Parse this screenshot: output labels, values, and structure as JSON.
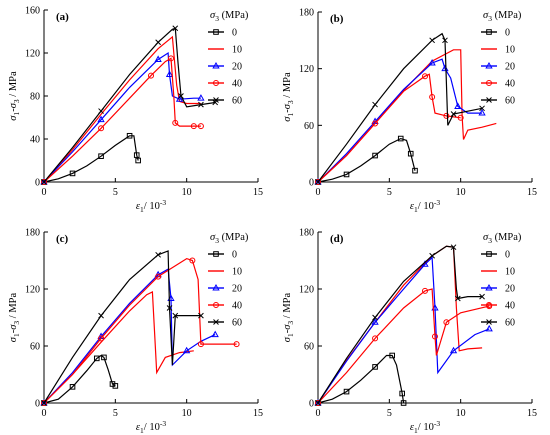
{
  "figure": {
    "legend_title": "σ3 (MPa)",
    "xlabel": "ε1/ 10-3",
    "ylabel": "σ1-σ3 / MPa",
    "colors": {
      "0": "#000000",
      "10": "#ff0000",
      "20": "#0000ff",
      "40": "#ff0000",
      "60": "#000000"
    }
  },
  "chart_data": [
    {
      "type": "line",
      "panel_label": "(a)",
      "xlim": [
        0,
        15
      ],
      "ylim": [
        0,
        160
      ],
      "xticks": [
        0,
        5,
        10,
        15
      ],
      "yticks": [
        0,
        40,
        80,
        120,
        160
      ],
      "legend": [
        "0",
        "10",
        "20",
        "40",
        "60"
      ],
      "series": [
        {
          "name": "0",
          "color": "#000000",
          "marker": "square",
          "points": [
            [
              0,
              0
            ],
            [
              1,
              3
            ],
            [
              2,
              8
            ],
            [
              3,
              15
            ],
            [
              4,
              24
            ],
            [
              5,
              34
            ],
            [
              6,
              43
            ],
            [
              6.3,
              43
            ],
            [
              6.5,
              25
            ],
            [
              6.6,
              20
            ]
          ]
        },
        {
          "name": "10",
          "color": "#ff0000",
          "marker": "none",
          "points": [
            [
              0,
              0
            ],
            [
              2,
              30
            ],
            [
              4,
              63
            ],
            [
              6,
              95
            ],
            [
              8,
              124
            ],
            [
              9,
              135
            ],
            [
              9.1,
              120
            ],
            [
              9.3,
              90
            ],
            [
              9.5,
              75
            ],
            [
              10,
              73
            ],
            [
              11,
              73
            ]
          ]
        },
        {
          "name": "20",
          "color": "#0000ff",
          "marker": "triangle",
          "points": [
            [
              0,
              0
            ],
            [
              2,
              28
            ],
            [
              4,
              58
            ],
            [
              6,
              88
            ],
            [
              8,
              114
            ],
            [
              8.7,
              120
            ],
            [
              8.8,
              100
            ],
            [
              9,
              80
            ],
            [
              9.5,
              77
            ],
            [
              10.5,
              78
            ],
            [
              11,
              78
            ]
          ]
        },
        {
          "name": "40",
          "color": "#ff0000",
          "marker": "circle",
          "points": [
            [
              0,
              0
            ],
            [
              2,
              24
            ],
            [
              4,
              50
            ],
            [
              6,
              78
            ],
            [
              7.5,
              99
            ],
            [
              8.5,
              112
            ],
            [
              8.9,
              115
            ],
            [
              9.1,
              80
            ],
            [
              9.2,
              55
            ],
            [
              9.5,
              52
            ],
            [
              10.5,
              52
            ],
            [
              11,
              52
            ]
          ]
        },
        {
          "name": "60",
          "color": "#000000",
          "marker": "cross",
          "points": [
            [
              0,
              0
            ],
            [
              2,
              32
            ],
            [
              4,
              66
            ],
            [
              6,
              100
            ],
            [
              8,
              130
            ],
            [
              9,
              142
            ],
            [
              9.2,
              143
            ],
            [
              9.4,
              110
            ],
            [
              9.6,
              80
            ],
            [
              10,
              70
            ],
            [
              11,
              72
            ],
            [
              12,
              74
            ]
          ]
        }
      ]
    },
    {
      "type": "line",
      "panel_label": "(b)",
      "xlim": [
        0,
        15
      ],
      "ylim": [
        0,
        180
      ],
      "xticks": [
        0,
        5,
        10,
        15
      ],
      "yticks": [
        0,
        60,
        120,
        180
      ],
      "legend": [
        "0",
        "10",
        "20",
        "40",
        "60"
      ],
      "series": [
        {
          "name": "0",
          "color": "#000000",
          "marker": "square",
          "points": [
            [
              0,
              0
            ],
            [
              1,
              3
            ],
            [
              2,
              8
            ],
            [
              3,
              17
            ],
            [
              4,
              28
            ],
            [
              5,
              40
            ],
            [
              5.8,
              46
            ],
            [
              6.2,
              44
            ],
            [
              6.5,
              30
            ],
            [
              6.8,
              12
            ]
          ]
        },
        {
          "name": "10",
          "color": "#ff0000",
          "marker": "none",
          "points": [
            [
              0,
              0
            ],
            [
              2,
              28
            ],
            [
              4,
              62
            ],
            [
              6,
              97
            ],
            [
              8,
              128
            ],
            [
              9.5,
              140
            ],
            [
              10,
              140
            ],
            [
              10.1,
              70
            ],
            [
              10.2,
              45
            ],
            [
              10.5,
              55
            ],
            [
              11.5,
              58
            ],
            [
              12.5,
              62
            ]
          ]
        },
        {
          "name": "20",
          "color": "#0000ff",
          "marker": "triangle",
          "points": [
            [
              0,
              0
            ],
            [
              2,
              30
            ],
            [
              4,
              64
            ],
            [
              6,
              98
            ],
            [
              8,
              126
            ],
            [
              8.7,
              130
            ],
            [
              8.9,
              120
            ],
            [
              9.3,
              110
            ],
            [
              9.8,
              80
            ],
            [
              10.5,
              73
            ],
            [
              11.5,
              73
            ]
          ]
        },
        {
          "name": "40",
          "color": "#ff0000",
          "marker": "circle",
          "points": [
            [
              0,
              0
            ],
            [
              2,
              28
            ],
            [
              4,
              62
            ],
            [
              6,
              96
            ],
            [
              7.5,
              112
            ],
            [
              7.8,
              114
            ],
            [
              8,
              90
            ],
            [
              8.2,
              73
            ],
            [
              9,
              70
            ],
            [
              10,
              68
            ]
          ]
        },
        {
          "name": "60",
          "color": "#000000",
          "marker": "cross",
          "points": [
            [
              0,
              0
            ],
            [
              2,
              40
            ],
            [
              4,
              82
            ],
            [
              6,
              120
            ],
            [
              8,
              150
            ],
            [
              8.7,
              157
            ],
            [
              8.9,
              150
            ],
            [
              9.1,
              60
            ],
            [
              9.5,
              72
            ],
            [
              10.5,
              75
            ],
            [
              11.5,
              78
            ]
          ]
        }
      ]
    },
    {
      "type": "line",
      "panel_label": "(c)",
      "xlim": [
        0,
        15
      ],
      "ylim": [
        0,
        180
      ],
      "xticks": [
        0,
        5,
        10,
        15
      ],
      "yticks": [
        0,
        60,
        120,
        180
      ],
      "legend": [
        "0",
        "10",
        "20",
        "40",
        "60"
      ],
      "series": [
        {
          "name": "0",
          "color": "#000000",
          "marker": "square",
          "points": [
            [
              0,
              0
            ],
            [
              1,
              4
            ],
            [
              2,
              17
            ],
            [
              3,
              34
            ],
            [
              3.7,
              47
            ],
            [
              4,
              50
            ],
            [
              4.2,
              48
            ],
            [
              4.5,
              35
            ],
            [
              4.8,
              20
            ],
            [
              5,
              18
            ]
          ]
        },
        {
          "name": "10",
          "color": "#ff0000",
          "marker": "none",
          "points": [
            [
              0,
              0
            ],
            [
              2,
              30
            ],
            [
              4,
              64
            ],
            [
              6,
              97
            ],
            [
              7.2,
              114
            ],
            [
              7.6,
              117
            ],
            [
              7.8,
              60
            ],
            [
              7.9,
              32
            ],
            [
              8.5,
              48
            ],
            [
              9.5,
              53
            ],
            [
              10.5,
              55
            ]
          ]
        },
        {
          "name": "20",
          "color": "#0000ff",
          "marker": "triangle",
          "points": [
            [
              0,
              0
            ],
            [
              2,
              32
            ],
            [
              4,
              70
            ],
            [
              6,
              105
            ],
            [
              8,
              135
            ],
            [
              8.7,
              141
            ],
            [
              8.9,
              110
            ],
            [
              9,
              40
            ],
            [
              10,
              55
            ],
            [
              11,
              65
            ],
            [
              12,
              72
            ]
          ]
        },
        {
          "name": "40",
          "color": "#ff0000",
          "marker": "circle",
          "points": [
            [
              0,
              0
            ],
            [
              2,
              30
            ],
            [
              4,
              68
            ],
            [
              6,
              103
            ],
            [
              8,
              133
            ],
            [
              10,
              152
            ],
            [
              10.4,
              150
            ],
            [
              10.8,
              130
            ],
            [
              11,
              62
            ],
            [
              12,
              62
            ],
            [
              13.5,
              62
            ]
          ]
        },
        {
          "name": "60",
          "color": "#000000",
          "marker": "cross",
          "points": [
            [
              0,
              0
            ],
            [
              2,
              48
            ],
            [
              4,
              92
            ],
            [
              6,
              130
            ],
            [
              8,
              156
            ],
            [
              8.7,
              160
            ],
            [
              8.8,
              100
            ],
            [
              9,
              40
            ],
            [
              9.2,
              92
            ],
            [
              10,
              92
            ],
            [
              11,
              92
            ]
          ]
        }
      ]
    },
    {
      "type": "line",
      "panel_label": "(d)",
      "xlim": [
        0,
        15
      ],
      "ylim": [
        0,
        180
      ],
      "xticks": [
        0,
        5,
        10,
        15
      ],
      "yticks": [
        0,
        60,
        120,
        180
      ],
      "legend": [
        "0",
        "10",
        "20",
        "40",
        "60"
      ],
      "series": [
        {
          "name": "0",
          "color": "#000000",
          "marker": "square",
          "points": [
            [
              0,
              0
            ],
            [
              1,
              4
            ],
            [
              2,
              12
            ],
            [
              3,
              24
            ],
            [
              4,
              38
            ],
            [
              4.8,
              50
            ],
            [
              5.2,
              50
            ],
            [
              5.5,
              40
            ],
            [
              5.9,
              10
            ],
            [
              6,
              0
            ]
          ]
        },
        {
          "name": "10",
          "color": "#ff0000",
          "marker": "none",
          "points": [
            [
              0,
              0
            ],
            [
              2,
              45
            ],
            [
              4,
              85
            ],
            [
              6,
              124
            ],
            [
              8,
              155
            ],
            [
              9,
              165
            ],
            [
              9.5,
              164
            ],
            [
              9.7,
              100
            ],
            [
              9.9,
              55
            ],
            [
              10.5,
              57
            ],
            [
              11.5,
              58
            ]
          ]
        },
        {
          "name": "20",
          "color": "#0000ff",
          "marker": "triangle",
          "points": [
            [
              0,
              0
            ],
            [
              2,
              44
            ],
            [
              4,
              85
            ],
            [
              6,
              120
            ],
            [
              7.5,
              146
            ],
            [
              8,
              153
            ],
            [
              8.2,
              100
            ],
            [
              8.4,
              32
            ],
            [
              9.5,
              55
            ],
            [
              11,
              72
            ],
            [
              12,
              78
            ]
          ]
        },
        {
          "name": "40",
          "color": "#ff0000",
          "marker": "circle",
          "points": [
            [
              0,
              0
            ],
            [
              2,
              32
            ],
            [
              4,
              68
            ],
            [
              6,
              100
            ],
            [
              7.5,
              118
            ],
            [
              8,
              120
            ],
            [
              8.2,
              70
            ],
            [
              8.3,
              50
            ],
            [
              9,
              85
            ],
            [
              10,
              95
            ],
            [
              12,
              102
            ]
          ]
        },
        {
          "name": "60",
          "color": "#000000",
          "marker": "cross",
          "points": [
            [
              0,
              0
            ],
            [
              2,
              47
            ],
            [
              4,
              90
            ],
            [
              6,
              128
            ],
            [
              8,
              155
            ],
            [
              9,
              165
            ],
            [
              9.5,
              164
            ],
            [
              9.7,
              120
            ],
            [
              9.8,
              110
            ],
            [
              10.5,
              112
            ],
            [
              11.5,
              112
            ]
          ]
        }
      ]
    }
  ]
}
